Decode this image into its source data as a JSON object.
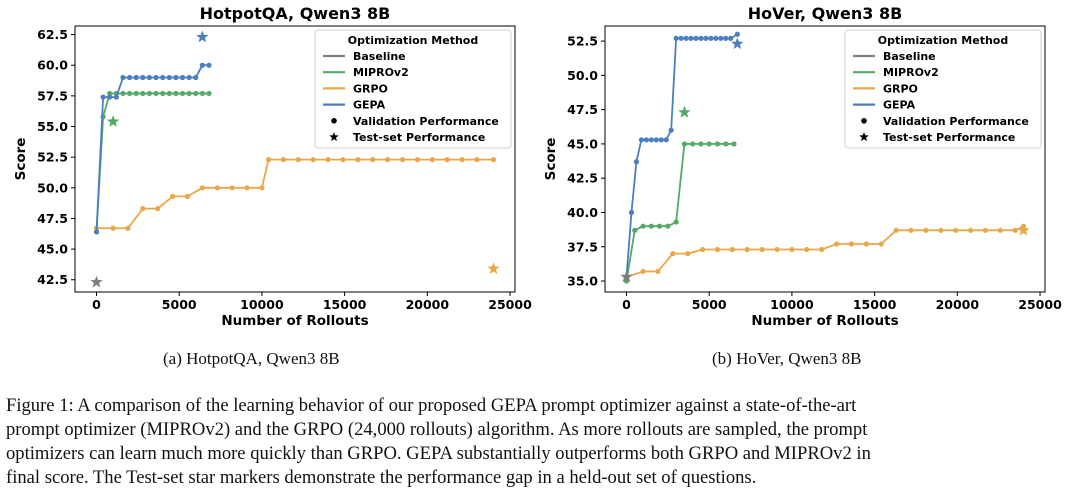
{
  "figure": {
    "subcaptions": [
      "(a) HotpotQA, Qwen3 8B",
      "(b) HoVer, Qwen3 8B"
    ],
    "caption_lines": [
      "Figure 1:  A comparison of the learning behavior of our proposed GEPA prompt optimizer against a state-of-the-art",
      "prompt optimizer (MIPROv2) and the GRPO (24,000 rollouts) algorithm.  As more rollouts are sampled, the prompt",
      "optimizers can learn much more quickly than GRPO. GEPA substantially outperforms both GRPO and MIPROv2 in",
      "final score. The Test-set star markers demonstrate the performance gap in a held-out set of questions."
    ]
  },
  "colors": {
    "baseline": "#7f7f7f",
    "miprov2": "#55a868",
    "grpo": "#e8a84a",
    "gepa": "#4c7fbf",
    "axis": "#000000"
  },
  "chart_data": [
    {
      "type": "line",
      "title": "HotpotQA, Qwen3 8B",
      "xlabel": "Number of Rollouts",
      "ylabel": "Score",
      "xlim": [
        -1300,
        25300
      ],
      "ylim": [
        41.5,
        63.2
      ],
      "xticks": [
        0,
        5000,
        10000,
        15000,
        20000,
        25000
      ],
      "xtick_labels": [
        "0",
        "5000",
        "10000",
        "15000",
        "20000",
        "25000"
      ],
      "yticks": [
        42.5,
        45.0,
        47.5,
        50.0,
        52.5,
        55.0,
        57.5,
        60.0,
        62.5
      ],
      "ytick_labels": [
        "42.5",
        "45.0",
        "47.5",
        "50.0",
        "52.5",
        "55.0",
        "57.5",
        "60.0",
        "62.5"
      ],
      "legend": {
        "title": "Optimization Method",
        "position": "top-right",
        "entries": [
          "Baseline",
          "MIPROv2",
          "GRPO",
          "GEPA",
          "Validation Performance",
          "Test-set Performance"
        ]
      },
      "series": [
        {
          "name": "MIPROv2",
          "color_key": "miprov2",
          "x": [
            0,
            400,
            800,
            1200,
            1600,
            2000,
            2400,
            2800,
            3200,
            3600,
            4000,
            4400,
            4800,
            5200,
            5600,
            6000,
            6400,
            6800
          ],
          "y": [
            46.4,
            55.8,
            57.7,
            57.7,
            57.7,
            57.7,
            57.7,
            57.7,
            57.7,
            57.7,
            57.7,
            57.7,
            57.7,
            57.7,
            57.7,
            57.7,
            57.7,
            57.7
          ]
        },
        {
          "name": "GRPO",
          "color_key": "grpo",
          "x": [
            0,
            1000,
            1900,
            2800,
            3700,
            4600,
            5500,
            6400,
            7300,
            8200,
            9100,
            10000,
            10400,
            11300,
            12200,
            13100,
            14000,
            14900,
            15800,
            16700,
            17600,
            18500,
            19400,
            20300,
            21200,
            22100,
            23000,
            24000
          ],
          "y": [
            46.7,
            46.7,
            46.7,
            48.3,
            48.3,
            49.3,
            49.3,
            50.0,
            50.0,
            50.0,
            50.0,
            50.0,
            52.3,
            52.3,
            52.3,
            52.3,
            52.3,
            52.3,
            52.3,
            52.3,
            52.3,
            52.3,
            52.3,
            52.3,
            52.3,
            52.3,
            52.3,
            52.3
          ]
        },
        {
          "name": "GEPA",
          "color_key": "gepa",
          "x": [
            0,
            400,
            800,
            1200,
            1600,
            2000,
            2400,
            2800,
            3200,
            3600,
            4000,
            4400,
            4800,
            5200,
            5600,
            6000,
            6400,
            6800
          ],
          "y": [
            46.4,
            57.4,
            57.4,
            57.4,
            59.0,
            59.0,
            59.0,
            59.0,
            59.0,
            59.0,
            59.0,
            59.0,
            59.0,
            59.0,
            59.0,
            59.0,
            60.0,
            60.0
          ]
        }
      ],
      "test_points": [
        {
          "name": "Baseline",
          "color_key": "baseline",
          "x": 0,
          "y": 42.3
        },
        {
          "name": "MIPROv2",
          "color_key": "miprov2",
          "x": 1000,
          "y": 55.4
        },
        {
          "name": "GRPO",
          "color_key": "grpo",
          "x": 24000,
          "y": 43.4
        },
        {
          "name": "GEPA",
          "color_key": "gepa",
          "x": 6400,
          "y": 62.3
        }
      ]
    },
    {
      "type": "line",
      "title": "HoVer, Qwen3 8B",
      "xlabel": "Number of Rollouts",
      "ylabel": "Score",
      "xlim": [
        -1300,
        25300
      ],
      "ylim": [
        34.2,
        53.6
      ],
      "xticks": [
        0,
        5000,
        10000,
        15000,
        20000,
        25000
      ],
      "xtick_labels": [
        "0",
        "5000",
        "10000",
        "15000",
        "20000",
        "25000"
      ],
      "yticks": [
        35.0,
        37.5,
        40.0,
        42.5,
        45.0,
        47.5,
        50.0,
        52.5
      ],
      "ytick_labels": [
        "35.0",
        "37.5",
        "40.0",
        "42.5",
        "45.0",
        "47.5",
        "50.0",
        "52.5"
      ],
      "legend": {
        "title": "Optimization Method",
        "position": "top-right",
        "entries": [
          "Baseline",
          "MIPROv2",
          "GRPO",
          "GEPA",
          "Validation Performance",
          "Test-set Performance"
        ]
      },
      "series": [
        {
          "name": "MIPROv2",
          "color_key": "miprov2",
          "x": [
            0,
            500,
            1000,
            1500,
            2000,
            2500,
            3000,
            3500,
            4000,
            4500,
            5000,
            5500,
            6000,
            6500
          ],
          "y": [
            35.0,
            38.7,
            39.0,
            39.0,
            39.0,
            39.0,
            39.3,
            45.0,
            45.0,
            45.0,
            45.0,
            45.0,
            45.0,
            45.0
          ]
        },
        {
          "name": "GRPO",
          "color_key": "grpo",
          "x": [
            0,
            1000,
            1900,
            2800,
            3700,
            4600,
            5500,
            6400,
            7300,
            8200,
            9100,
            10000,
            10900,
            11800,
            12700,
            13600,
            14500,
            15400,
            16300,
            17200,
            18100,
            19000,
            19900,
            20800,
            21700,
            22600,
            23500,
            24000
          ],
          "y": [
            35.3,
            35.7,
            35.7,
            37.0,
            37.0,
            37.3,
            37.3,
            37.3,
            37.3,
            37.3,
            37.3,
            37.3,
            37.3,
            37.3,
            37.7,
            37.7,
            37.7,
            37.7,
            38.7,
            38.7,
            38.7,
            38.7,
            38.7,
            38.7,
            38.7,
            38.7,
            38.7,
            39.0
          ]
        },
        {
          "name": "GEPA",
          "color_key": "gepa",
          "x": [
            0,
            300,
            600,
            900,
            1200,
            1500,
            1800,
            2100,
            2400,
            2700,
            3000,
            3300,
            3600,
            3900,
            4200,
            4500,
            4800,
            5100,
            5400,
            5700,
            6000,
            6300,
            6700
          ],
          "y": [
            35.3,
            40.0,
            43.7,
            45.3,
            45.3,
            45.3,
            45.3,
            45.3,
            45.3,
            46.0,
            52.7,
            52.7,
            52.7,
            52.7,
            52.7,
            52.7,
            52.7,
            52.7,
            52.7,
            52.7,
            52.7,
            52.7,
            53.0
          ]
        }
      ],
      "test_points": [
        {
          "name": "Baseline",
          "color_key": "baseline",
          "x": 0,
          "y": 35.3
        },
        {
          "name": "MIPROv2",
          "color_key": "miprov2",
          "x": 3500,
          "y": 47.3
        },
        {
          "name": "GRPO",
          "color_key": "grpo",
          "x": 24000,
          "y": 38.7
        },
        {
          "name": "GEPA",
          "color_key": "gepa",
          "x": 6700,
          "y": 52.3
        }
      ]
    }
  ]
}
